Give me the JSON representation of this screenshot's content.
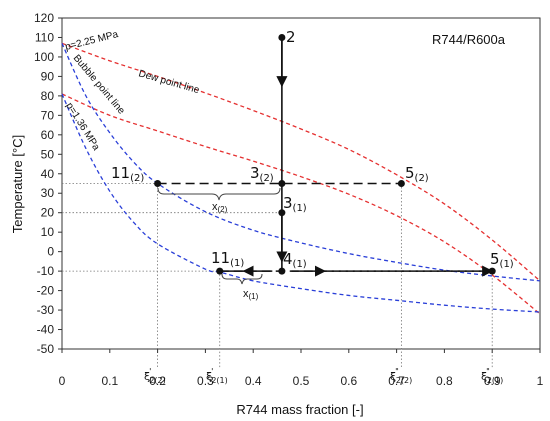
{
  "chart_data": {
    "type": "line",
    "title": "R744/R600a",
    "xlabel": "R744 mass fraction [-]",
    "ylabel": "Temperature [°C]",
    "xlim": [
      0,
      1
    ],
    "ylim": [
      -50,
      120
    ],
    "x_ticks": [
      0,
      0.1,
      0.2,
      0.3,
      0.4,
      0.5,
      0.6,
      0.7,
      0.8,
      0.9,
      1
    ],
    "x_tick_labels": [
      "0",
      "0.1",
      "0.2",
      "0.3",
      "0.4",
      "0.5",
      "0.6",
      "0.7",
      "0.8",
      "0.9",
      "1"
    ],
    "y_ticks": [
      -50,
      -40,
      -30,
      -20,
      -10,
      0,
      10,
      20,
      30,
      40,
      50,
      60,
      70,
      80,
      90,
      100,
      110,
      120
    ],
    "grid": false,
    "series": [
      {
        "name": "Dew point line",
        "pressure": "p=2.25 MPa",
        "color": "#e53030",
        "style": "dashed",
        "x": [
          0,
          0.1,
          0.2,
          0.3,
          0.4,
          0.5,
          0.6,
          0.7,
          0.8,
          0.9,
          1.0
        ],
        "y": [
          107,
          98,
          90,
          81.5,
          72.5,
          63,
          52.5,
          39.5,
          24.5,
          6,
          -15
        ]
      },
      {
        "name": "Dew point line",
        "pressure": "p=1.36 MPa",
        "color": "#e53030",
        "style": "dashed",
        "x": [
          0,
          0.1,
          0.2,
          0.3,
          0.4,
          0.5,
          0.6,
          0.7,
          0.8,
          0.9,
          1.0
        ],
        "y": [
          81,
          70,
          62,
          54,
          46.5,
          38.5,
          29.5,
          18.5,
          5,
          -12,
          -32
        ]
      },
      {
        "name": "Bubble point line",
        "pressure": "p=2.25 MPa",
        "color": "#2a3fd8",
        "style": "dashed",
        "x": [
          0,
          0.05,
          0.1,
          0.15,
          0.2,
          0.3,
          0.4,
          0.5,
          0.6,
          0.7,
          0.8,
          0.9,
          1.0
        ],
        "y": [
          107,
          80,
          61,
          46,
          35,
          20.5,
          11,
          4.5,
          -1,
          -5.5,
          -9.5,
          -12.5,
          -15
        ]
      },
      {
        "name": "Bubble point line",
        "pressure": "p=1.36 MPa",
        "color": "#2a3fd8",
        "style": "dashed",
        "x": [
          0,
          0.05,
          0.1,
          0.15,
          0.2,
          0.3,
          0.33,
          0.4,
          0.5,
          0.6,
          0.7,
          0.8,
          0.9,
          1.0
        ],
        "y": [
          81,
          53,
          31,
          15,
          4,
          -9,
          -10.5,
          -15,
          -19,
          -22.5,
          -25,
          -27.5,
          -29.5,
          -31
        ]
      }
    ],
    "points": [
      {
        "id": "2",
        "x": 0.46,
        "y": 110
      },
      {
        "id": "3(2)",
        "x": 0.46,
        "y": 35
      },
      {
        "id": "3(1)",
        "x": 0.46,
        "y": 20
      },
      {
        "id": "4(1)",
        "x": 0.46,
        "y": -10
      },
      {
        "id": "5(2)",
        "x": 0.71,
        "y": 35
      },
      {
        "id": "5(1)",
        "x": 0.9,
        "y": -10
      },
      {
        "id": "11(2)",
        "x": 0.2,
        "y": 35
      },
      {
        "id": "11(1)",
        "x": 0.33,
        "y": -10
      }
    ],
    "xi_marks": [
      {
        "label": "ξ'2(2)",
        "x": 0.2
      },
      {
        "label": "ξ'2(1)",
        "x": 0.33
      },
      {
        "label": "ξ\"2(2)",
        "x": 0.71
      },
      {
        "label": "ξ\"2(1)",
        "x": 0.9
      }
    ]
  },
  "labels": {
    "title": "R744/R600a",
    "dew_point_line": "Dew point line",
    "bubble_point_line": "Bubble point line",
    "p_high": "p=2.25 MPa",
    "p_low": "p=1.36 MPa",
    "pt_2": "2",
    "pt_3_2_main": "3",
    "pt_3_2_sub": "(2)",
    "pt_3_1_main": "3",
    "pt_3_1_sub": "(1)",
    "pt_4_1_main": "4",
    "pt_4_1_sub": "(1)",
    "pt_5_2_main": "5",
    "pt_5_2_sub": "(2)",
    "pt_5_1_main": "5",
    "pt_5_1_sub": "(1)",
    "pt_11_2_main": "11",
    "pt_11_2_sub": "(2)",
    "pt_11_1_main": "11",
    "pt_11_1_sub": "(1)",
    "x2_main": "x",
    "x2_sub": "(2)",
    "x1_main": "x",
    "x1_sub": "(1)",
    "xi_main": "ξ",
    "xi_a_sub": "2(2)",
    "xi_a_sup": "'",
    "xi_b_sub": "2(1)",
    "xi_b_sup": "'",
    "xi_c_sub": "2(2)",
    "xi_c_sup": "\"",
    "xi_d_sub": "2(1)",
    "xi_d_sup": "\""
  }
}
